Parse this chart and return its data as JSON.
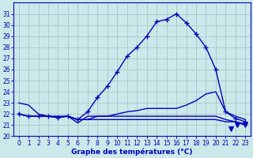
{
  "title": "Graphe des températures (°C)",
  "bg_color": "#cce8e8",
  "grid_color": "#aacccc",
  "line_color": "#0000bb",
  "xlim": [
    -0.5,
    23.5
  ],
  "ylim": [
    20,
    32
  ],
  "xticks": [
    0,
    1,
    2,
    3,
    4,
    5,
    6,
    7,
    8,
    9,
    10,
    11,
    12,
    13,
    14,
    15,
    16,
    17,
    18,
    19,
    20,
    21,
    22,
    23
  ],
  "yticks": [
    20,
    21,
    22,
    23,
    24,
    25,
    26,
    27,
    28,
    29,
    30,
    31
  ],
  "hours": [
    0,
    1,
    2,
    3,
    4,
    5,
    6,
    7,
    8,
    9,
    10,
    11,
    12,
    13,
    14,
    15,
    16,
    17,
    18,
    19,
    20,
    21,
    22,
    23
  ],
  "temp_main": [
    22.0,
    21.8,
    21.8,
    21.8,
    21.7,
    21.8,
    21.5,
    22.2,
    23.5,
    24.5,
    25.8,
    27.2,
    28.0,
    29.0,
    30.3,
    30.5,
    31.0,
    30.2,
    29.2,
    28.0,
    26.0,
    22.2,
    21.6,
    21.3
  ],
  "temp_dew": [
    23.0,
    22.8,
    22.0,
    21.8,
    21.8,
    21.8,
    21.5,
    21.5,
    21.8,
    21.8,
    22.0,
    22.2,
    22.3,
    22.5,
    22.5,
    22.5,
    22.5,
    22.8,
    23.2,
    23.8,
    24.0,
    22.2,
    21.8,
    21.5
  ],
  "temp_low": [
    22.0,
    21.8,
    21.8,
    21.8,
    21.7,
    21.8,
    21.2,
    21.8,
    21.8,
    21.8,
    21.8,
    21.8,
    21.8,
    21.8,
    21.8,
    21.8,
    21.8,
    21.8,
    21.8,
    21.8,
    21.8,
    21.5,
    21.3,
    21.1
  ],
  "temp_wind": [
    22.0,
    21.8,
    21.8,
    21.8,
    21.7,
    21.8,
    21.5,
    21.5,
    21.5,
    21.5,
    21.5,
    21.5,
    21.5,
    21.5,
    21.5,
    21.5,
    21.5,
    21.5,
    21.5,
    21.5,
    21.5,
    21.3,
    21.3,
    21.0
  ],
  "triangle_points": [
    [
      21.5,
      20.7
    ],
    [
      22.2,
      21.0
    ],
    [
      23.0,
      21.0
    ]
  ],
  "tick_fontsize": 5.5,
  "label_fontsize": 6.5
}
